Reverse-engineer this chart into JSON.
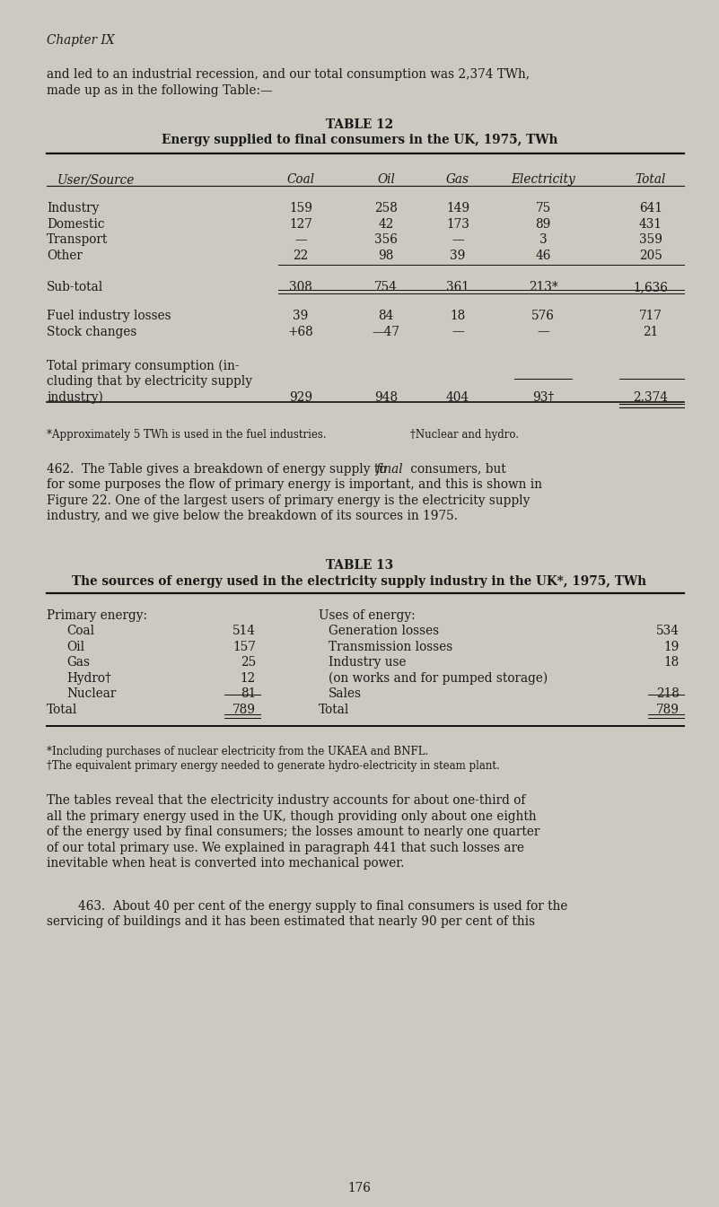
{
  "bg_color": "#ccc9c0",
  "text_color": "#1a1a1a",
  "page_width": 8.01,
  "page_height": 13.45,
  "chapter_header": "Chapter IX",
  "intro_line1": "and led to an industrial recession, and our total consumption was 2,374 TWh,",
  "intro_line2": "made up as in the following Table:—",
  "table12_title": "TABLE 12",
  "table12_subtitle": "Energy supplied to final consumers in the UK, 1975, TWh",
  "table13_title": "TABLE 13",
  "table13_subtitle": "The sources of energy used in the electricity supply industry in the UK*, 1975, TWh",
  "table12_footnote1": "*Approximately 5 TWh is used in the fuel industries.",
  "table12_footnote2": "†Nuclear and hydro.",
  "table13_footnote1": "*Including purchases of nuclear electricity from the UKAEA and BNFL.",
  "table13_footnote2": "†The equivalent primary energy needed to generate hydro-electricity in steam plant.",
  "para462_pre": "462.  The Table gives a breakdown of energy supply to ",
  "para462_italic": "final",
  "para462_post": " consumers, but",
  "para462_line2": "for some purposes the flow of primary energy is important, and this is shown in",
  "para462_line3": "Figure 22. One of the largest users of primary energy is the electricity supply",
  "para462_line4": "industry, and we give below the breakdown of its sources in 1975.",
  "para_tables_lines": [
    "The tables reveal that the electricity industry accounts for about one-third of",
    "all the primary energy used in the UK, though providing only about one eighth",
    "of the energy used by final consumers; the losses amount to nearly one quarter",
    "of our total primary use. We explained in paragraph 441 that such losses are",
    "inevitable when heat is converted into mechanical power."
  ],
  "para463_line1": "463.  About 40 per cent of the energy supply to final consumers is used for the",
  "para463_line2": "servicing of buildings and it has been estimated that nearly 90 per cent of this",
  "page_number": "176"
}
